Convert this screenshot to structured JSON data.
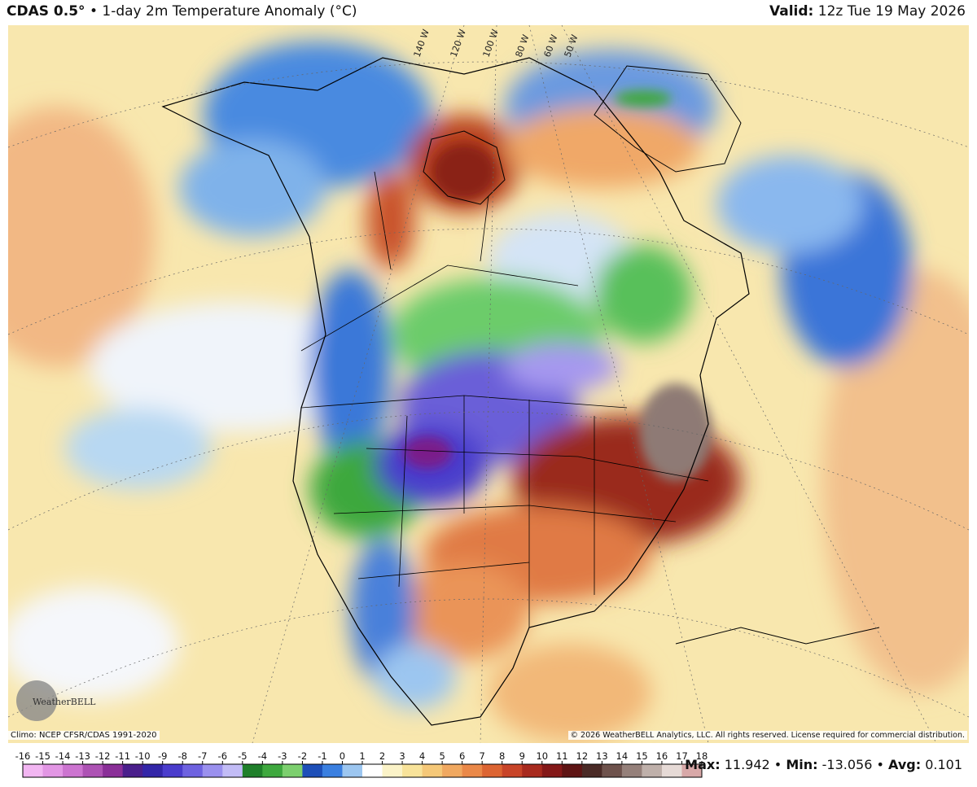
{
  "header": {
    "product": "CDAS 0.5°",
    "separator": "•",
    "title": "1-day 2m Temperature Anomaly (°C)",
    "valid_label": "Valid:",
    "valid_time": "12z Tue 19 May 2026"
  },
  "map": {
    "longitude_labels": [
      "140 W",
      "120 W",
      "100 W",
      "80 W",
      "60 W",
      "50 W"
    ],
    "logo": "WeatherBELL"
  },
  "footer": {
    "climo": "Climo: NCEP CFSR/CDAS 1991-2020",
    "copyright": "© 2026 WeatherBELL Analytics, LLC. All rights reserved. License required for commercial distribution."
  },
  "colorbar": {
    "ticks": [
      -16,
      -15,
      -14,
      -13,
      -12,
      -11,
      -10,
      -9,
      -8,
      -7,
      -6,
      -5,
      -4,
      -3,
      -2,
      -1,
      0,
      1,
      2,
      3,
      4,
      5,
      6,
      7,
      8,
      9,
      10,
      11,
      12,
      13,
      14,
      15,
      16,
      17,
      18
    ],
    "colors": [
      "#f2b6f2",
      "#e296e4",
      "#cc74d0",
      "#ad52b4",
      "#8a2f98",
      "#4a1f8c",
      "#3326a8",
      "#4a3ccc",
      "#6e62e0",
      "#9a90ee",
      "#c2bcf6",
      "#1f7f2a",
      "#3ea83e",
      "#7ccf6e",
      "#1d4fb8",
      "#3a7fe0",
      "#9cc6f0",
      "#ffffff",
      "#fbf3c8",
      "#f8e39a",
      "#f5c878",
      "#f0a860",
      "#ea8848",
      "#dc6432",
      "#c84428",
      "#a82a1e",
      "#841818",
      "#5e1414",
      "#4a2a26",
      "#6e524c",
      "#95807a",
      "#bfb0aa",
      "#e6dad6",
      "#d8a8a8"
    ]
  },
  "stats": {
    "separator": "•",
    "items": [
      {
        "label": "Max:",
        "value": 11.942
      },
      {
        "label": "Min:",
        "value": -13.056
      },
      {
        "label": "Avg:",
        "value": 0.101
      }
    ]
  }
}
